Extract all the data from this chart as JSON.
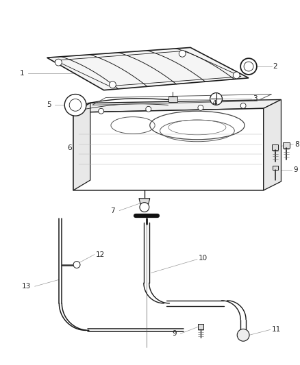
{
  "bg_color": "#ffffff",
  "line_color": "#1a1a1a",
  "gray": "#888888",
  "light_gray": "#bbbbbb",
  "figsize": [
    4.38,
    5.33
  ],
  "dpi": 100
}
